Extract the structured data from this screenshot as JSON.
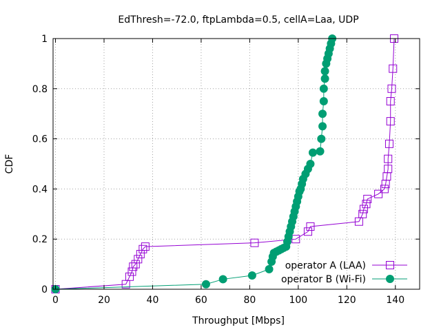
{
  "chart_data": {
    "type": "line",
    "title": "EdThresh=-72.0, ftpLambda=0.5, cellA=Laa, UDP",
    "xlabel": "Throughput [Mbps]",
    "ylabel": "CDF",
    "xlim": [
      -1,
      150
    ],
    "ylim": [
      0,
      1
    ],
    "xticks": [
      "0",
      "20",
      "40",
      "60",
      "80",
      "100",
      "120",
      "140"
    ],
    "yticks": [
      "0",
      "0.2",
      "0.4",
      "0.6",
      "0.8",
      "1"
    ],
    "grid": true,
    "legend": "bottom-right",
    "series": [
      {
        "name": "operator A (LAA)",
        "color": "#9400d3",
        "marker": "square",
        "x": [
          0,
          29,
          30.5,
          31.5,
          32,
          33,
          34,
          35,
          36,
          37,
          82,
          99,
          104,
          105,
          125,
          126.5,
          127,
          128,
          128.5,
          133,
          135.5,
          136,
          136.5,
          137,
          137,
          137.5,
          138,
          138,
          138.5,
          139,
          139.5
        ],
        "y": [
          0,
          0.02,
          0.05,
          0.07,
          0.09,
          0.1,
          0.12,
          0.14,
          0.16,
          0.17,
          0.185,
          0.2,
          0.23,
          0.25,
          0.27,
          0.3,
          0.32,
          0.34,
          0.36,
          0.38,
          0.4,
          0.42,
          0.45,
          0.48,
          0.52,
          0.58,
          0.67,
          0.75,
          0.8,
          0.88,
          1.0
        ]
      },
      {
        "name": "operator B (Wi-Fi)",
        "color": "#009e73",
        "marker": "circle",
        "x": [
          0,
          62,
          69,
          81,
          88,
          89,
          89.5,
          90,
          91,
          92,
          93,
          94,
          95,
          95.5,
          96,
          96.5,
          97,
          97.5,
          98,
          98.5,
          99,
          99.5,
          100,
          100.5,
          101,
          101.5,
          102,
          103,
          104,
          105,
          106,
          109,
          109.5,
          110,
          110,
          110.5,
          110.5,
          111,
          111,
          111.5,
          112,
          112.5,
          113,
          113.5,
          114
        ],
        "y": [
          0,
          0.02,
          0.04,
          0.055,
          0.08,
          0.11,
          0.13,
          0.145,
          0.15,
          0.155,
          0.16,
          0.165,
          0.17,
          0.19,
          0.21,
          0.23,
          0.25,
          0.27,
          0.29,
          0.31,
          0.33,
          0.35,
          0.37,
          0.39,
          0.4,
          0.42,
          0.44,
          0.46,
          0.48,
          0.5,
          0.545,
          0.55,
          0.6,
          0.65,
          0.7,
          0.75,
          0.8,
          0.84,
          0.87,
          0.9,
          0.92,
          0.94,
          0.96,
          0.98,
          1.0
        ]
      }
    ]
  }
}
